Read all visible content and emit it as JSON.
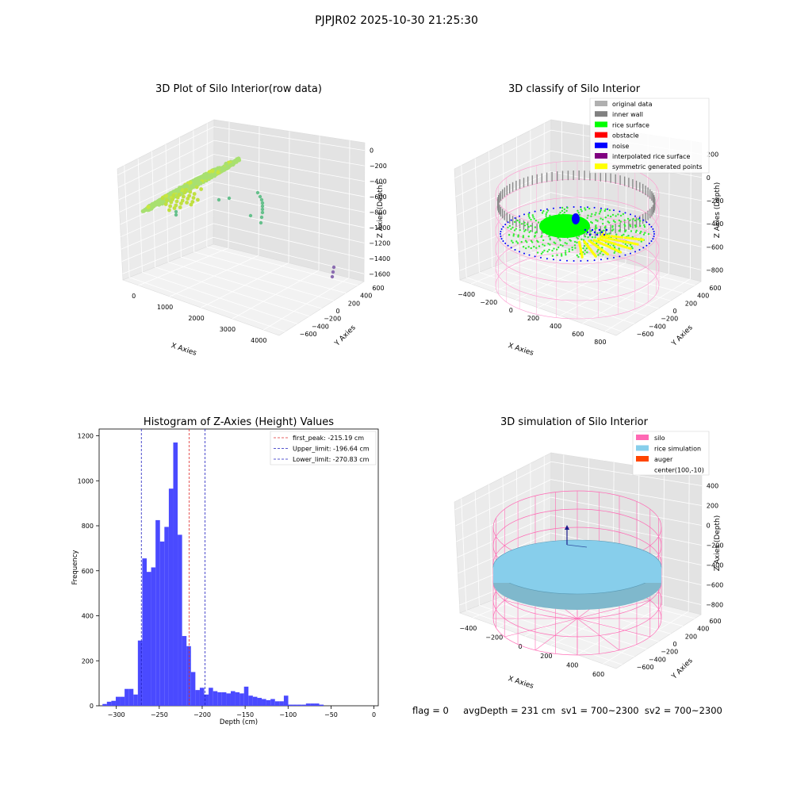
{
  "suptitle": "PJPJR02 2025-10-30 21:25:30",
  "status_line": "flag = 0     avgDepth = 231 cm  sv1 = 700~2300  sv2 = 700~2300",
  "colors": {
    "hist_bar": "#4a4aff",
    "first_peak_line": "#e03030",
    "limit_line": "#2020c0",
    "pane_left": "#ebebeb",
    "pane_right": "#e3e3e3",
    "pane_floor": "#f2f2f2"
  },
  "chart_data": [
    {
      "type": "scatter",
      "title": "3D Plot of Silo Interior(row data)",
      "xlabel": "X Axies",
      "ylabel": "Y Axies",
      "zlabel": "Z Axies (Depth)",
      "x_ticks": [
        "0",
        "1000",
        "2000",
        "3000",
        "4000"
      ],
      "y_ticks": [
        "600",
        "400",
        "200",
        "0",
        "−200",
        "−400",
        "−600"
      ],
      "z_ticks": [
        "0",
        "−200",
        "−400",
        "−600",
        "−800",
        "−1000",
        "−1200",
        "−1400",
        "−1600"
      ],
      "xlim": [
        -500,
        4500
      ],
      "ylim": [
        -700,
        700
      ],
      "zlim": [
        -1700,
        100
      ],
      "series": [
        {
          "values": "main surface disk, depth ≈ -200 to -300",
          "color": "#9de36a"
        },
        {
          "values": "scattered mid points",
          "color": "#5fbf8a"
        },
        {
          "values": "far outliers near x≈4000, z≈-1500",
          "color": "#8a6bb0"
        }
      ]
    },
    {
      "type": "scatter",
      "title": "3D classify of Silo Interior",
      "xlabel": "X Axies",
      "ylabel": "Y Axies",
      "zlabel": "Z Axies (Depth)",
      "x_ticks": [
        "−400",
        "−200",
        "0",
        "200",
        "400",
        "600",
        "800"
      ],
      "y_ticks": [
        "600",
        "400",
        "200",
        "0",
        "−200",
        "−400",
        "−600"
      ],
      "z_ticks": [
        "200",
        "0",
        "−200",
        "−400",
        "−600",
        "−800"
      ],
      "xlim": [
        -500,
        850
      ],
      "ylim": [
        -700,
        700
      ],
      "zlim": [
        -900,
        300
      ],
      "legend_position": "top-right",
      "legend": [
        {
          "label": "original data",
          "color": "#b0b0b0"
        },
        {
          "label": "inner wall",
          "color": "#808080"
        },
        {
          "label": "rice surface",
          "color": "#00ff00"
        },
        {
          "label": "obstacle",
          "color": "#ff0000"
        },
        {
          "label": "noise",
          "color": "#0000ff"
        },
        {
          "label": "interpolated rice surface",
          "color": "#800080"
        },
        {
          "label": "symmetric generated points",
          "color": "#ffff00"
        }
      ]
    },
    {
      "type": "bar",
      "title": "Histogram of Z-Axies (Height) Values",
      "xlabel": "Depth (cm)",
      "ylabel": "Frequency",
      "xlim": [
        -320,
        5
      ],
      "ylim": [
        0,
        1230
      ],
      "x_ticks": [
        -300,
        -250,
        -200,
        -150,
        -100,
        -50,
        0
      ],
      "y_ticks": [
        0,
        200,
        400,
        600,
        800,
        1000,
        1200
      ],
      "bin_start": -316.1,
      "bin_width": 5.15,
      "values": [
        8,
        18,
        22,
        40,
        40,
        75,
        75,
        50,
        290,
        655,
        595,
        615,
        825,
        730,
        795,
        965,
        1170,
        760,
        310,
        265,
        150,
        70,
        80,
        50,
        80,
        65,
        60,
        60,
        55,
        65,
        60,
        55,
        85,
        45,
        40,
        35,
        30,
        25,
        30,
        20,
        20,
        45,
        5,
        5,
        5,
        5,
        10,
        10,
        10,
        5,
        0
      ],
      "reference_lines": [
        {
          "label": "first_peak: -215.19 cm",
          "x": -215.19,
          "color": "#e03030"
        },
        {
          "label": "Upper_limit: -196.64 cm",
          "x": -196.64,
          "color": "#2020c0"
        },
        {
          "label": "Lower_limit: -270.83 cm",
          "x": -270.83,
          "color": "#2020c0"
        }
      ],
      "legend_position": "top-right"
    },
    {
      "type": "scatter",
      "title": "3D simulation of Silo Interior",
      "xlabel": "X Axies",
      "ylabel": "Y Axies",
      "zlabel": "Z Axies (Depth)",
      "x_ticks": [
        "−400",
        "−200",
        "0",
        "200",
        "400",
        "600"
      ],
      "y_ticks": [
        "600",
        "400",
        "200",
        "0",
        "−200",
        "−400",
        "−600"
      ],
      "z_ticks": [
        "400",
        "200",
        "0",
        "−200",
        "−400",
        "−600",
        "−800"
      ],
      "xlim": [
        -500,
        700
      ],
      "ylim": [
        -700,
        700
      ],
      "zlim": [
        -900,
        500
      ],
      "legend_position": "top-right",
      "legend": [
        {
          "label": "silo",
          "color": "#ff69b4"
        },
        {
          "label": "rice simulation",
          "color": "#87ceeb"
        },
        {
          "label": "auger",
          "color": "#ff4500"
        },
        {
          "label": "center(100,-10)",
          "color": ""
        }
      ]
    }
  ]
}
